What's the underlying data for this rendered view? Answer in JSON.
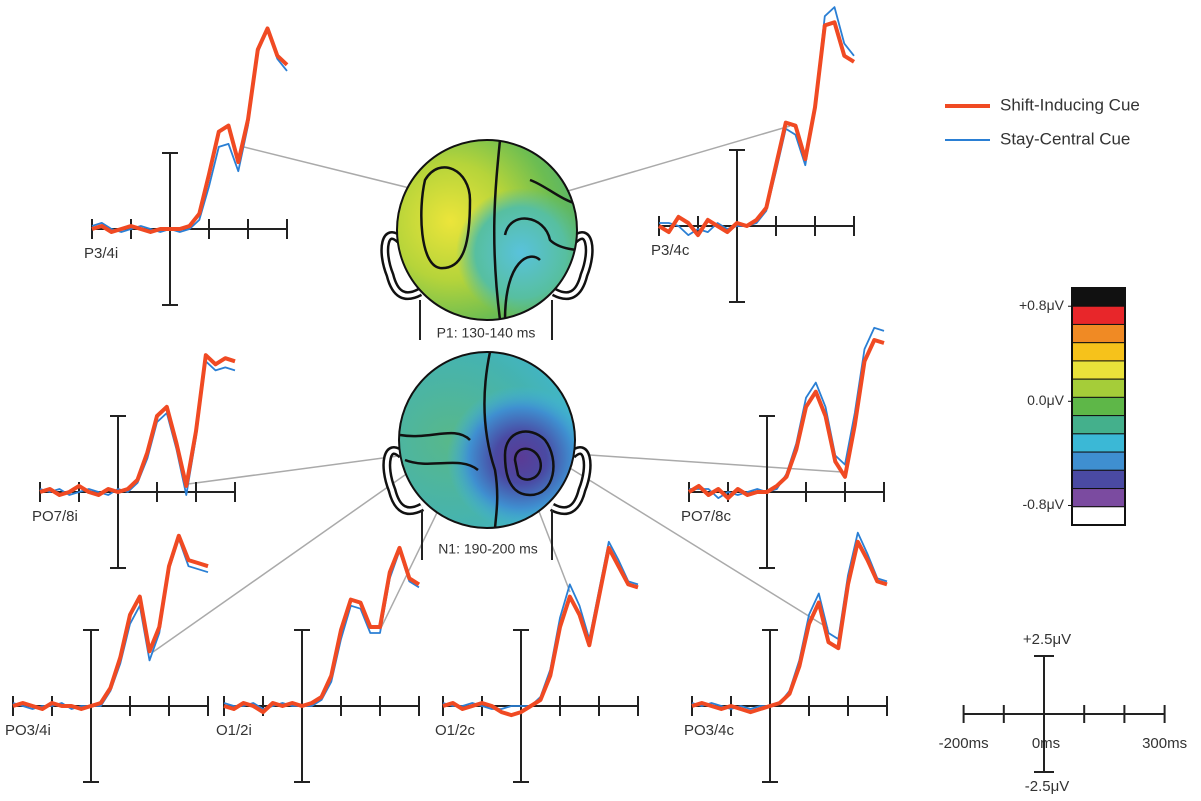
{
  "chart_data": {
    "type": "line",
    "series": [
      {
        "name": "Shift-Inducing Cue",
        "color": "#f04a23"
      },
      {
        "name": "Stay-Central Cue",
        "color": "#2a7fd4"
      }
    ],
    "x": [
      -200,
      -175,
      -150,
      -125,
      -100,
      -75,
      -50,
      -25,
      0,
      25,
      50,
      75,
      100,
      125,
      150,
      175,
      200,
      225,
      250,
      275,
      300
    ],
    "scale": {
      "xlim": [
        -200,
        300
      ],
      "xticks": [
        {
          "value": -200,
          "label": "-200ms"
        },
        {
          "value": 0,
          "label": "0ms"
        },
        {
          "value": 300,
          "label": "300ms"
        }
      ],
      "minor_xticks": [
        -100,
        100,
        200
      ],
      "ylim": [
        -2.5,
        2.5
      ],
      "yticks": [
        {
          "value": 2.5,
          "label": "+2.5μV"
        },
        {
          "value": -2.5,
          "label": "-2.5μV"
        }
      ]
    },
    "panels": [
      {
        "label": "P3/4i",
        "values": [
          [
            0,
            0.1,
            -0.1,
            0,
            0.1,
            0,
            -0.1,
            0,
            0,
            0,
            0.1,
            0.5,
            1.8,
            3.2,
            3.4,
            2.2,
            3.6,
            5.9,
            6.6,
            5.7,
            5.4
          ],
          [
            0.1,
            0.2,
            0,
            -0.1,
            0,
            0.1,
            0,
            -0.1,
            0,
            -0.1,
            0,
            0.3,
            1.4,
            2.7,
            2.8,
            1.9,
            3.4,
            5.8,
            6.6,
            5.6,
            5.2
          ]
        ]
      },
      {
        "label": "P3/4c",
        "values": [
          [
            0,
            -0.2,
            0.3,
            0.1,
            -0.3,
            0.2,
            0,
            -0.2,
            0.1,
            0,
            0.2,
            0.6,
            2.0,
            3.4,
            3.3,
            2.2,
            3.9,
            6.6,
            6.7,
            5.6,
            5.4
          ],
          [
            0.1,
            0.1,
            0,
            -0.3,
            -0.1,
            -0.2,
            0.1,
            -0.1,
            0,
            0,
            0.1,
            0.5,
            1.8,
            3.2,
            3.0,
            2.0,
            4.0,
            6.9,
            7.2,
            6.0,
            5.6
          ]
        ]
      },
      {
        "label": "PO7/8i",
        "values": [
          [
            0,
            0.1,
            -0.1,
            0,
            0.2,
            0,
            -0.1,
            0.1,
            0,
            0.1,
            0.4,
            1.3,
            2.5,
            2.8,
            1.6,
            0.2,
            2.0,
            4.5,
            4.2,
            4.4,
            4.3
          ],
          [
            0.1,
            0,
            0.1,
            -0.1,
            0,
            0.1,
            0,
            -0.1,
            0.1,
            0,
            0.3,
            1.1,
            2.3,
            2.6,
            1.4,
            -0.1,
            1.8,
            4.3,
            4.0,
            4.1,
            4.0
          ]
        ]
      },
      {
        "label": "PO7/8c",
        "values": [
          [
            0,
            0.2,
            -0.1,
            0.1,
            -0.2,
            0.1,
            -0.1,
            0,
            0,
            0.2,
            0.5,
            1.4,
            2.8,
            3.3,
            2.5,
            1.0,
            0.5,
            2.2,
            4.3,
            5.0,
            4.9
          ],
          [
            0.1,
            0.1,
            0.1,
            -0.2,
            0,
            -0.1,
            0,
            0.1,
            0,
            0.1,
            0.6,
            1.6,
            3.1,
            3.6,
            2.8,
            1.2,
            0.9,
            2.6,
            4.7,
            5.4,
            5.3
          ]
        ]
      },
      {
        "label": "PO3/4i",
        "values": [
          [
            0,
            0.1,
            0,
            -0.1,
            0.1,
            0,
            0,
            -0.1,
            0,
            0.1,
            0.6,
            1.6,
            3.0,
            3.6,
            1.8,
            2.6,
            4.6,
            5.6,
            4.8,
            4.7,
            4.6
          ],
          [
            0.1,
            0,
            -0.1,
            0,
            0,
            0.1,
            -0.1,
            0,
            0,
            0,
            0.5,
            1.4,
            2.7,
            3.3,
            1.5,
            2.4,
            4.5,
            5.5,
            4.6,
            4.5,
            4.4
          ]
        ]
      },
      {
        "label": "O1/2i",
        "values": [
          [
            0,
            -0.1,
            0.1,
            0,
            -0.2,
            0.1,
            0,
            0.1,
            0,
            0.1,
            0.3,
            1.0,
            2.5,
            3.5,
            3.4,
            2.6,
            2.6,
            4.4,
            5.2,
            4.2,
            4.0
          ],
          [
            0.1,
            0,
            0,
            0.1,
            -0.1,
            0,
            0.1,
            0,
            0,
            0,
            0.2,
            0.8,
            2.2,
            3.3,
            3.2,
            2.4,
            2.4,
            4.2,
            5.1,
            4.1,
            3.9
          ]
        ]
      },
      {
        "label": "O1/2c",
        "values": [
          [
            0,
            0.1,
            -0.1,
            0,
            0.1,
            0,
            -0.2,
            -0.3,
            -0.2,
            0,
            0.2,
            1.0,
            2.6,
            3.6,
            3.0,
            2.0,
            3.6,
            5.2,
            4.6,
            4.0,
            3.9
          ],
          [
            0.1,
            0,
            0,
            0.1,
            0,
            -0.1,
            -0.1,
            0,
            0,
            0,
            0.3,
            1.2,
            2.9,
            4.0,
            3.3,
            2.2,
            3.8,
            5.4,
            4.8,
            4.1,
            4.0
          ]
        ]
      },
      {
        "label": "PO3/4c",
        "values": [
          [
            0,
            0.1,
            0,
            -0.1,
            0,
            -0.1,
            -0.2,
            -0.1,
            0,
            0.1,
            0.4,
            1.3,
            2.7,
            3.4,
            2.1,
            1.9,
            4.0,
            5.4,
            4.8,
            4.1,
            4.0
          ],
          [
            0.1,
            0,
            0.1,
            0,
            -0.1,
            0,
            -0.1,
            0,
            0,
            0.1,
            0.5,
            1.5,
            3.0,
            3.7,
            2.4,
            2.2,
            4.3,
            5.7,
            5.0,
            4.2,
            4.1
          ]
        ]
      }
    ],
    "topomaps": [
      {
        "label": "P1: 130-140 ms"
      },
      {
        "label": "N1: 190-200 ms"
      }
    ],
    "colorbar": {
      "colors": [
        "#111111",
        "#e8262a",
        "#f08a24",
        "#f6c21b",
        "#e9e23a",
        "#a5cd39",
        "#5eb748",
        "#44b08c",
        "#3bb8d6",
        "#3f8fd0",
        "#4a4aa3",
        "#7b4ba0",
        "#ffffff"
      ],
      "ylim": [
        -0.95,
        0.8
      ],
      "ticks": [
        {
          "value": 0.8,
          "label": "+0.8μV"
        },
        {
          "value": 0,
          "label": "0.0μV"
        },
        {
          "value": -0.8,
          "label": "-0.8μV"
        }
      ]
    }
  }
}
